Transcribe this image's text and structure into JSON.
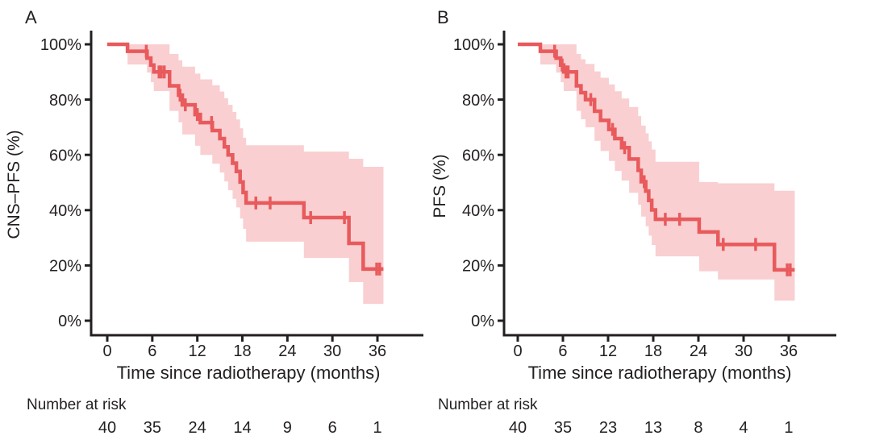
{
  "figure": {
    "background": "#ffffff",
    "text_color": "#231f20",
    "axis_color": "#231f20"
  },
  "chart_data": [
    {
      "type": "line",
      "subtype": "kaplan-meier-step",
      "panel_label": "A",
      "title": "",
      "xlabel": "Time since radiotherapy (months)",
      "ylabel": "CNS–PFS (%)",
      "xlim": [
        0,
        42
      ],
      "ylim": [
        0,
        100
      ],
      "grid": false,
      "legend": "none",
      "x_ticks": [
        0,
        6,
        12,
        18,
        24,
        30,
        36
      ],
      "y_ticks": [
        100,
        80,
        60,
        40,
        20,
        0
      ],
      "y_tick_labels": [
        "100%",
        "80%",
        "60%",
        "40%",
        "20%",
        "0%"
      ],
      "line_color": "#e85a5c",
      "ci_color": "#f9cfd1",
      "end_time": 36.8,
      "series": [
        {
          "name": "CNS-PFS",
          "start": [
            0,
            100
          ],
          "steps": [
            [
              2.7,
              97.5
            ],
            [
              5.3,
              95.0
            ],
            [
              5.8,
              92.5
            ],
            [
              6.2,
              90.0
            ],
            [
              8.3,
              85.0
            ],
            [
              9.5,
              81.6
            ],
            [
              10.0,
              78.1
            ],
            [
              11.7,
              74.6
            ],
            [
              12.4,
              71.7
            ],
            [
              14.0,
              68.8
            ],
            [
              15.0,
              65.9
            ],
            [
              15.6,
              62.9
            ],
            [
              16.1,
              60.0
            ],
            [
              16.7,
              57.0
            ],
            [
              17.2,
              54.0
            ],
            [
              17.7,
              50.2
            ],
            [
              18.1,
              46.4
            ],
            [
              18.5,
              42.6
            ],
            [
              26.2,
              37.3
            ],
            [
              32.2,
              28.0
            ],
            [
              34.1,
              18.7
            ]
          ]
        }
      ],
      "ci": [
        [
          2.7,
          92.7,
          100
        ],
        [
          5.3,
          89.8,
          100
        ],
        [
          5.8,
          86.3,
          100
        ],
        [
          6.2,
          83.1,
          100
        ],
        [
          8.3,
          75.9,
          96.5
        ],
        [
          9.5,
          71.8,
          94.2
        ],
        [
          10.0,
          67.4,
          91.9
        ],
        [
          11.7,
          63.3,
          89.4
        ],
        [
          12.4,
          60.0,
          87.3
        ],
        [
          14.0,
          56.8,
          85.2
        ],
        [
          15.0,
          53.6,
          82.9
        ],
        [
          15.6,
          50.4,
          80.5
        ],
        [
          16.1,
          47.2,
          78.1
        ],
        [
          16.7,
          44.1,
          75.5
        ],
        [
          17.2,
          41.0,
          72.8
        ],
        [
          17.7,
          37.0,
          69.6
        ],
        [
          18.1,
          33.2,
          66.2
        ],
        [
          18.5,
          28.6,
          63.5
        ],
        [
          26.2,
          22.7,
          61.2
        ],
        [
          32.2,
          14.0,
          58.6
        ],
        [
          34.1,
          6.1,
          55.7
        ]
      ],
      "censor_marks": [
        [
          5.2,
          97.5
        ],
        [
          6.9,
          90.0
        ],
        [
          7.2,
          90.0
        ],
        [
          7.6,
          90.0
        ],
        [
          9.7,
          81.6
        ],
        [
          10.4,
          78.1
        ],
        [
          12.0,
          74.6
        ],
        [
          13.9,
          71.7
        ],
        [
          19.8,
          42.6
        ],
        [
          21.7,
          42.6
        ],
        [
          27.1,
          37.3
        ],
        [
          31.6,
          37.3
        ],
        [
          35.9,
          18.7
        ],
        [
          36.3,
          18.7
        ]
      ],
      "number_at_risk": {
        "label": "Number at risk",
        "times": [
          0,
          6,
          12,
          18,
          24,
          30,
          36
        ],
        "values": [
          40,
          35,
          24,
          14,
          9,
          6,
          1
        ]
      }
    },
    {
      "type": "line",
      "subtype": "kaplan-meier-step",
      "panel_label": "B",
      "title": "",
      "xlabel": "Time since radiotherapy (months)",
      "ylabel": "PFS (%)",
      "xlim": [
        0,
        42
      ],
      "ylim": [
        0,
        100
      ],
      "grid": false,
      "legend": "none",
      "x_ticks": [
        0,
        6,
        12,
        18,
        24,
        30,
        36
      ],
      "y_ticks": [
        100,
        80,
        60,
        40,
        20,
        0
      ],
      "y_tick_labels": [
        "100%",
        "80%",
        "60%",
        "40%",
        "20%",
        "0%"
      ],
      "line_color": "#e85a5c",
      "ci_color": "#f9cfd1",
      "end_time": 36.8,
      "series": [
        {
          "name": "PFS",
          "start": [
            0,
            100
          ],
          "steps": [
            [
              3.0,
              97.5
            ],
            [
              5.1,
              95.0
            ],
            [
              5.7,
              92.5
            ],
            [
              6.1,
              90.0
            ],
            [
              7.8,
              85.0
            ],
            [
              8.4,
              82.5
            ],
            [
              9.0,
              80.0
            ],
            [
              10.2,
              75.8
            ],
            [
              11.0,
              72.5
            ],
            [
              12.1,
              69.2
            ],
            [
              12.9,
              65.9
            ],
            [
              13.8,
              62.6
            ],
            [
              14.8,
              58.5
            ],
            [
              16.0,
              54.4
            ],
            [
              16.4,
              50.3
            ],
            [
              17.0,
              46.9
            ],
            [
              17.4,
              43.5
            ],
            [
              17.8,
              40.1
            ],
            [
              18.3,
              36.7
            ],
            [
              24.1,
              32.1
            ],
            [
              26.6,
              27.6
            ],
            [
              34.1,
              18.4
            ]
          ]
        }
      ],
      "ci": [
        [
          3.0,
          92.7,
          100
        ],
        [
          5.1,
          89.8,
          100
        ],
        [
          5.7,
          86.3,
          100
        ],
        [
          6.1,
          83.1,
          100
        ],
        [
          7.8,
          75.9,
          96.5
        ],
        [
          8.4,
          72.9,
          94.6
        ],
        [
          9.0,
          70.0,
          92.9
        ],
        [
          10.2,
          65.1,
          90.2
        ],
        [
          11.0,
          61.4,
          87.9
        ],
        [
          12.1,
          57.8,
          85.5
        ],
        [
          12.9,
          54.2,
          83.0
        ],
        [
          13.8,
          50.7,
          80.4
        ],
        [
          14.8,
          46.3,
          77.3
        ],
        [
          16.0,
          42.0,
          74.0
        ],
        [
          16.4,
          37.7,
          70.6
        ],
        [
          17.0,
          34.2,
          67.8
        ],
        [
          17.4,
          30.8,
          64.9
        ],
        [
          17.8,
          27.4,
          61.9
        ],
        [
          18.3,
          23.3,
          57.5
        ],
        [
          24.1,
          17.9,
          50.2
        ],
        [
          26.6,
          14.9,
          49.7
        ],
        [
          34.1,
          7.3,
          47.0
        ]
      ],
      "censor_marks": [
        [
          4.9,
          97.5
        ],
        [
          5.9,
          92.5
        ],
        [
          6.4,
          90.0
        ],
        [
          6.7,
          90.0
        ],
        [
          9.7,
          80.0
        ],
        [
          12.6,
          69.2
        ],
        [
          14.2,
          62.6
        ],
        [
          16.8,
          50.3
        ],
        [
          19.6,
          36.7
        ],
        [
          21.5,
          36.7
        ],
        [
          27.3,
          27.6
        ],
        [
          31.6,
          27.6
        ],
        [
          35.8,
          18.4
        ],
        [
          36.2,
          18.4
        ]
      ],
      "number_at_risk": {
        "label": "Number at risk",
        "times": [
          0,
          6,
          12,
          18,
          24,
          30,
          36
        ],
        "values": [
          40,
          35,
          23,
          13,
          8,
          4,
          1
        ]
      }
    }
  ]
}
